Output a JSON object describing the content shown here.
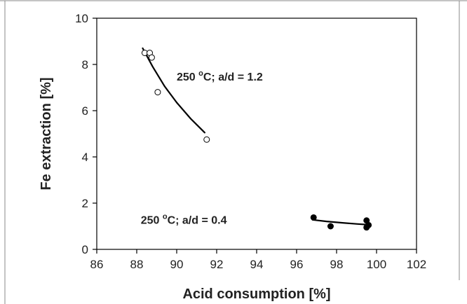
{
  "chart_data": {
    "type": "scatter",
    "title": "",
    "xlabel": "Acid consumption [%]",
    "ylabel": "Fe extraction [%]",
    "xlim": [
      86,
      102
    ],
    "ylim": [
      0,
      10
    ],
    "x_ticks": [
      "86",
      "88",
      "90",
      "92",
      "94",
      "96",
      "98",
      "100",
      "102"
    ],
    "y_ticks": [
      "0",
      "2",
      "4",
      "6",
      "8",
      "10"
    ],
    "grid": false,
    "series": [
      {
        "marker": "open-circle",
        "points": [
          {
            "x": 88.4,
            "y": 8.5
          },
          {
            "x": 88.65,
            "y": 8.5
          },
          {
            "x": 88.75,
            "y": 8.3
          },
          {
            "x": 89.05,
            "y": 6.8
          },
          {
            "x": 91.5,
            "y": 4.75
          }
        ],
        "trend": [
          {
            "x": 88.3,
            "y": 8.7
          },
          {
            "x": 88.8,
            "y": 7.9
          },
          {
            "x": 89.4,
            "y": 7.05
          },
          {
            "x": 90.0,
            "y": 6.35
          },
          {
            "x": 90.7,
            "y": 5.65
          },
          {
            "x": 91.4,
            "y": 5.05
          }
        ]
      },
      {
        "marker": "filled-circle",
        "points": [
          {
            "x": 96.85,
            "y": 1.38
          },
          {
            "x": 97.7,
            "y": 1.0
          },
          {
            "x": 99.5,
            "y": 1.25
          },
          {
            "x": 99.5,
            "y": 0.95
          },
          {
            "x": 99.6,
            "y": 1.05
          }
        ],
        "trend": [
          {
            "x": 96.8,
            "y": 1.28
          },
          {
            "x": 97.5,
            "y": 1.21
          },
          {
            "x": 98.3,
            "y": 1.15
          },
          {
            "x": 99.0,
            "y": 1.1
          },
          {
            "x": 99.7,
            "y": 1.06
          }
        ]
      }
    ],
    "annotations": [
      {
        "prefix": "250 ",
        "sup": "o",
        "suffix": "C; a/d = 1.2",
        "x": 90.0,
        "y": 7.3
      },
      {
        "prefix": "250 ",
        "sup": "o",
        "suffix": "C; a/d = 0.4",
        "x": 88.2,
        "y": 1.1
      }
    ]
  }
}
